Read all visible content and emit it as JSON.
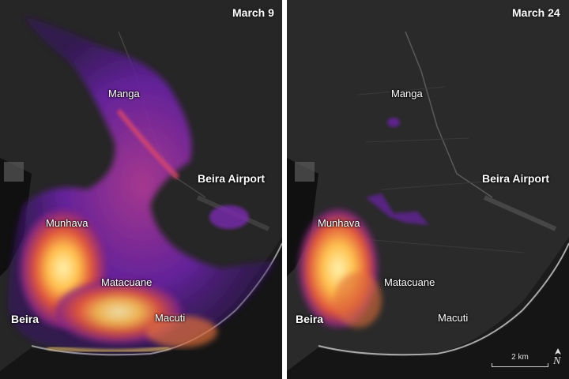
{
  "panels": [
    {
      "date": "March 9",
      "labels": {
        "manga": "Manga",
        "airport": "Beira Airport",
        "munhava": "Munhava",
        "matacuane": "Matacuane",
        "macuti": "Macuti",
        "beira": "Beira"
      }
    },
    {
      "date": "March 24",
      "labels": {
        "manga": "Manga",
        "airport": "Beira Airport",
        "munhava": "Munhava",
        "matacuane": "Matacuane",
        "macuti": "Macuti",
        "beira": "Beira"
      }
    }
  ],
  "scale_bar": {
    "label": "2 km"
  },
  "north_arrow": {
    "icon": "north-arrow-icon",
    "letter": "N"
  },
  "colors": {
    "background": "#000000",
    "land": "#2b2b2b",
    "flood_low": "#5a1a8c",
    "flood_mid": "#c2327a",
    "flood_high": "#ffd36a",
    "divider": "#ffffff"
  }
}
